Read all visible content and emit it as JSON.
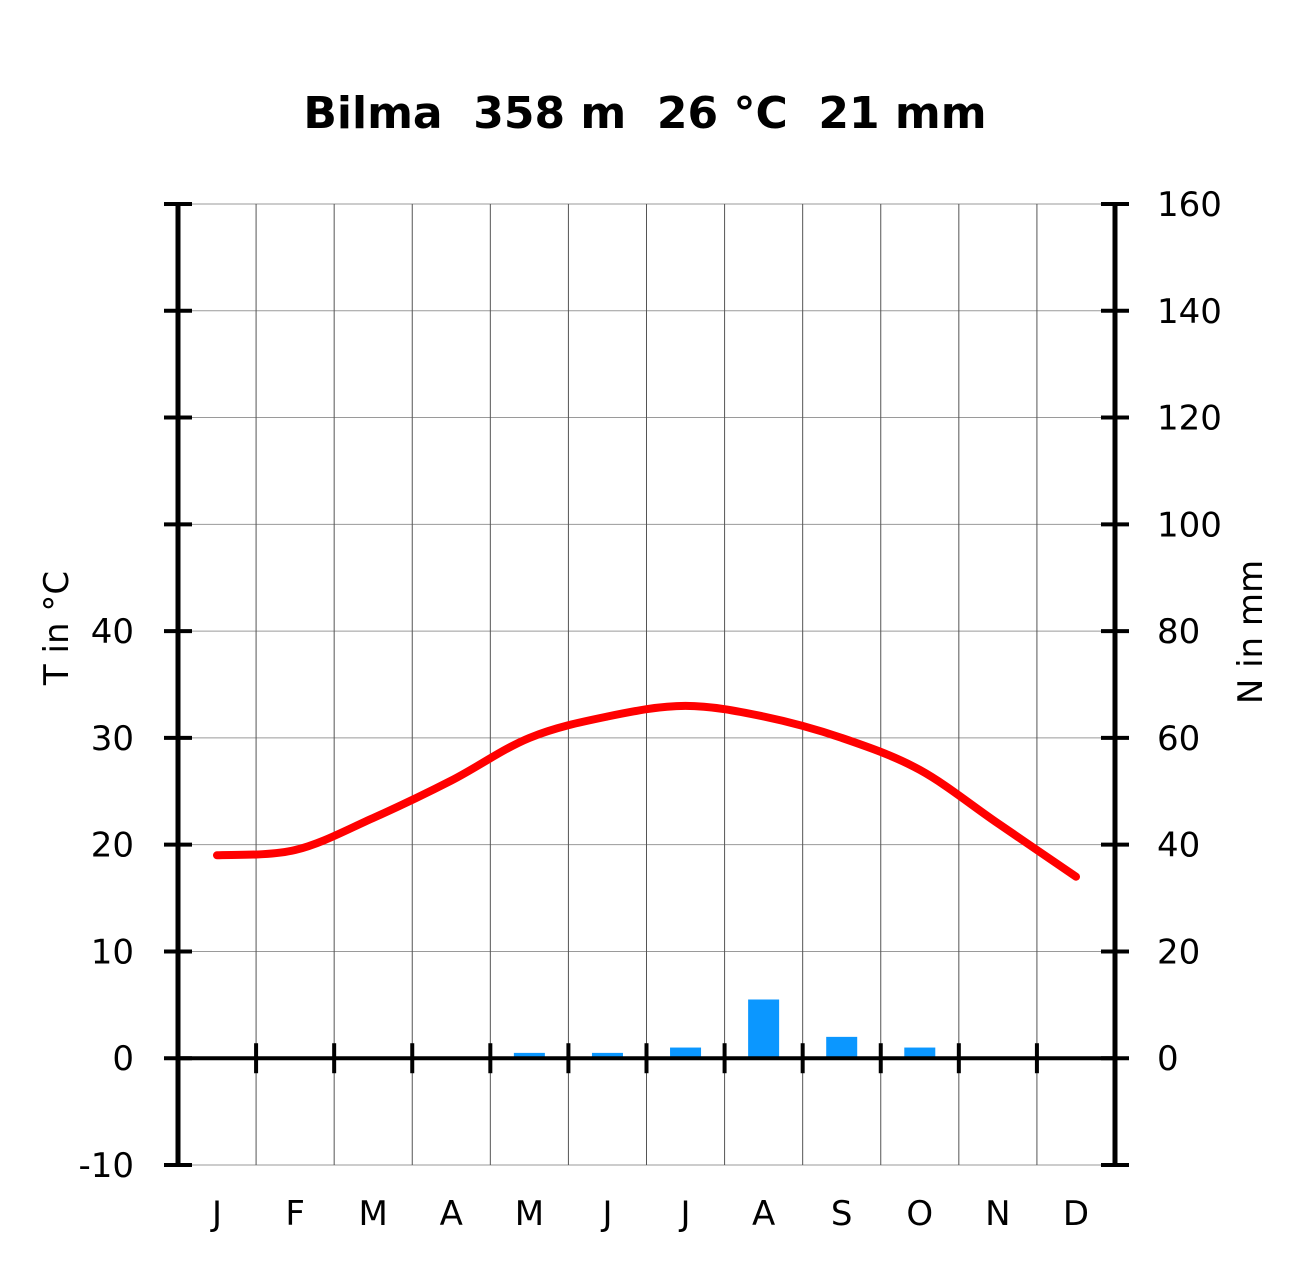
{
  "chart_data": {
    "type": "line",
    "title": "Bilma  358 m  26 °C  21 mm",
    "categories": [
      "J",
      "F",
      "M",
      "A",
      "M",
      "J",
      "J",
      "A",
      "S",
      "O",
      "N",
      "D"
    ],
    "left_axis": {
      "label": "T in °C",
      "range": [
        -10,
        80
      ],
      "ticks": [
        "-10",
        "0",
        "10",
        "20",
        "30",
        "40"
      ]
    },
    "right_axis": {
      "label": "N in mm",
      "range": [
        -20,
        160
      ],
      "ticks": [
        "0",
        "20",
        "40",
        "60",
        "80",
        "100",
        "120",
        "140",
        "160"
      ]
    },
    "grid": true,
    "series": [
      {
        "kind": "line",
        "axis": "left",
        "unit": "°C",
        "values": [
          19,
          19.5,
          22.5,
          26,
          30,
          32,
          33,
          32,
          30,
          27,
          22,
          17
        ],
        "color": "#ff0000"
      },
      {
        "kind": "bar",
        "axis": "right",
        "unit": "mm",
        "values": [
          0,
          0,
          0,
          0,
          1,
          1,
          2,
          11,
          4,
          2,
          0,
          0
        ],
        "color": "#0b97ff"
      }
    ]
  }
}
